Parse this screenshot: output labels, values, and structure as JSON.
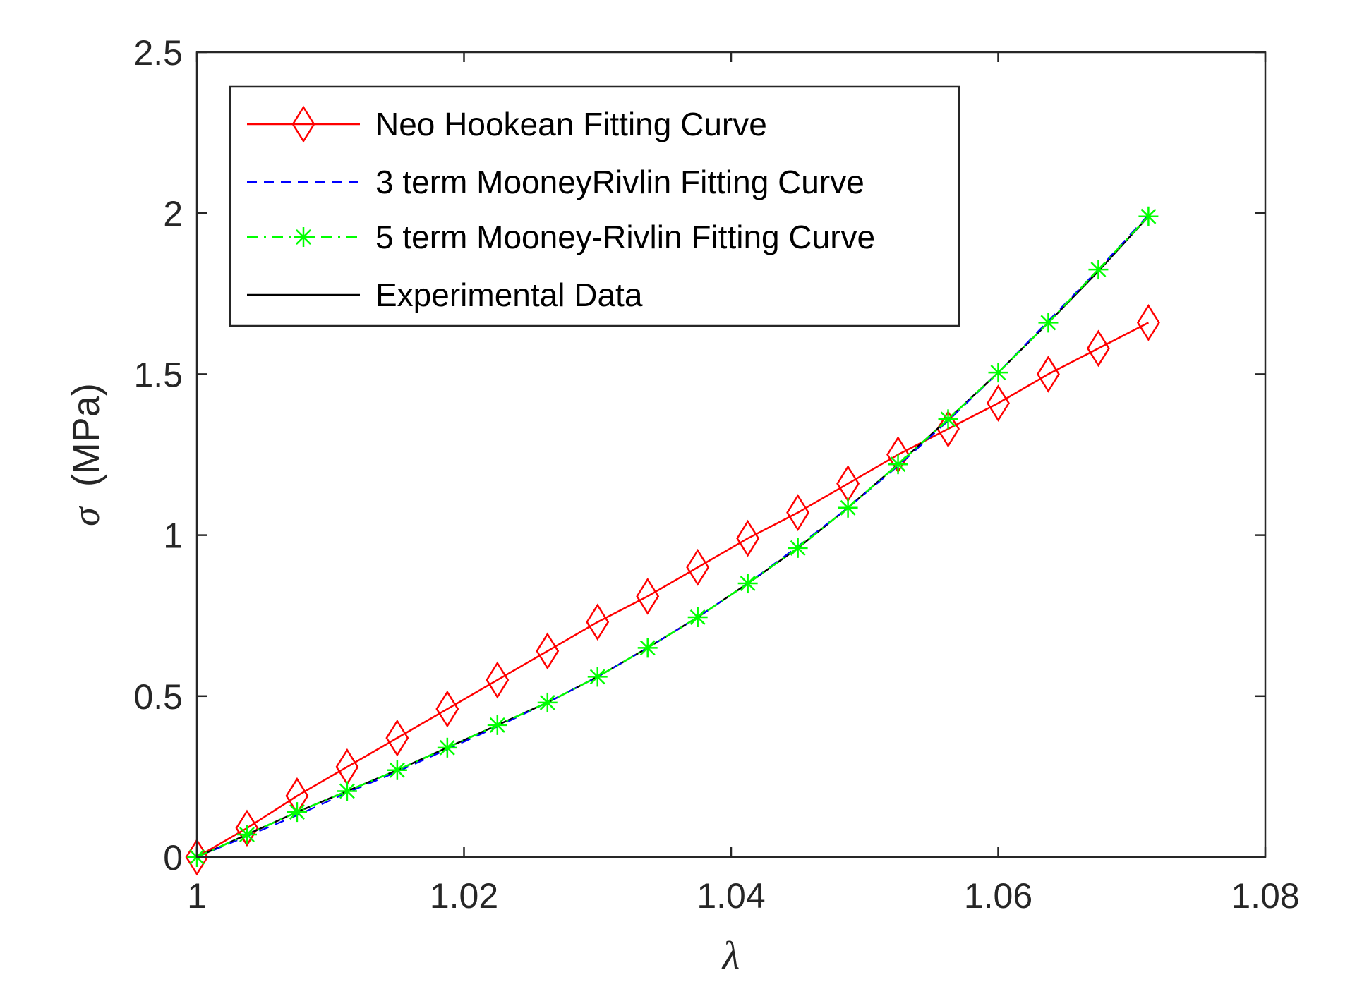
{
  "chart_data": {
    "type": "line",
    "title": "",
    "xlabel": "λ",
    "ylabel_symbol": "σ",
    "ylabel_unit": "(MPa)",
    "xlim": [
      1,
      1.08
    ],
    "ylim": [
      0,
      2.5
    ],
    "xticks": [
      1,
      1.02,
      1.04,
      1.06,
      1.08
    ],
    "xtick_labels": [
      "1",
      "1.02",
      "1.04",
      "1.06",
      "1.08"
    ],
    "yticks": [
      0,
      0.5,
      1,
      1.5,
      2,
      2.5
    ],
    "ytick_labels": [
      "0",
      "0.5",
      "1",
      "1.5",
      "2",
      "2.5"
    ],
    "grid": false,
    "legend_position": "top-left",
    "x": [
      1.0,
      1.00375,
      1.0075,
      1.01125,
      1.015,
      1.01875,
      1.0225,
      1.02625,
      1.03,
      1.03375,
      1.0375,
      1.04125,
      1.045,
      1.04875,
      1.0525,
      1.05625,
      1.06,
      1.06375,
      1.0675,
      1.07125
    ],
    "series": [
      {
        "name": "Neo Hookean Fitting Curve",
        "color": "#ff0000",
        "line": "solid",
        "marker": "diamond",
        "values": [
          0.0,
          0.09,
          0.19,
          0.28,
          0.37,
          0.46,
          0.55,
          0.64,
          0.73,
          0.81,
          0.9,
          0.99,
          1.07,
          1.16,
          1.25,
          1.33,
          1.41,
          1.5,
          1.58,
          1.66
        ]
      },
      {
        "name": "3 term MooneyRivlin Fitting Curve",
        "color": "#0000ff",
        "line": "dashed",
        "marker": "none",
        "values": [
          0.0,
          0.065,
          0.13,
          0.2,
          0.265,
          0.335,
          0.405,
          0.48,
          0.56,
          0.65,
          0.745,
          0.85,
          0.965,
          1.085,
          1.215,
          1.355,
          1.505,
          1.665,
          1.825,
          1.995
        ]
      },
      {
        "name": "5 term Mooney-Rivlin Fitting Curve",
        "color": "#00ff00",
        "line": "dashdot",
        "marker": "asterisk",
        "values": [
          0.0,
          0.07,
          0.14,
          0.205,
          0.27,
          0.34,
          0.41,
          0.48,
          0.56,
          0.65,
          0.745,
          0.85,
          0.96,
          1.085,
          1.22,
          1.36,
          1.505,
          1.66,
          1.825,
          1.99
        ]
      },
      {
        "name": "Experimental Data",
        "color": "#000000",
        "line": "solid",
        "marker": "none",
        "values": [
          0.0,
          0.07,
          0.14,
          0.205,
          0.27,
          0.34,
          0.41,
          0.48,
          0.56,
          0.65,
          0.745,
          0.85,
          0.96,
          1.085,
          1.22,
          1.36,
          1.505,
          1.66,
          1.82,
          1.99
        ]
      }
    ]
  }
}
